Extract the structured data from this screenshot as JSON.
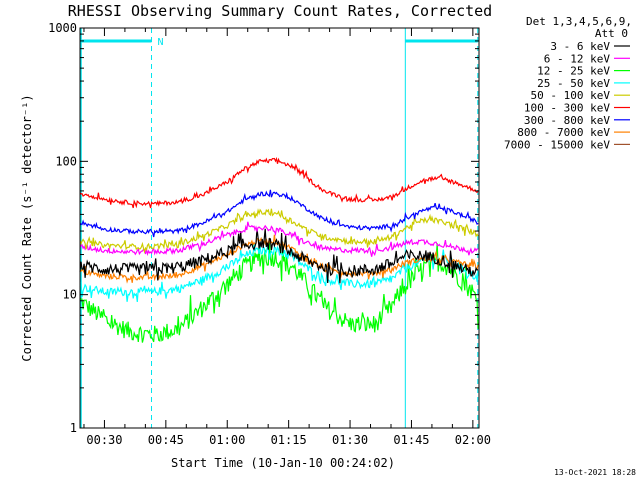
{
  "chart_data": {
    "type": "line",
    "title": "RHESSI Observing Summary Count Rates, Corrected",
    "ylabel": "Corrected Count Rate (s⁻¹ detector⁻¹)",
    "xlabel": "Start Time (10-Jan-10 00:24:02)",
    "footer": "13-Oct-2021 18:28",
    "ylim": [
      1,
      1000
    ],
    "yscale": "log",
    "y_ticks": [
      "1",
      "10",
      "100",
      "1000"
    ],
    "xlim_minutes": [
      24.03,
      121.5
    ],
    "x_ticks": [
      {
        "label": "00:30",
        "minute": 30
      },
      {
        "label": "00:45",
        "minute": 45
      },
      {
        "label": "01:00",
        "minute": 60
      },
      {
        "label": "01:15",
        "minute": 75
      },
      {
        "label": "01:30",
        "minute": 90
      },
      {
        "label": "01:45",
        "minute": 105
      },
      {
        "label": "02:00",
        "minute": 120
      }
    ],
    "grid": false,
    "legend_placement": "right",
    "legend_header": [
      "Det 1,3,4,5,6,9,",
      "Att 0"
    ],
    "night_marker_label": "N",
    "spacecraft_night": [
      {
        "start": 24.03,
        "end": 41.5
      },
      {
        "start": 103.5,
        "end": 121.2
      }
    ],
    "curve_x": [
      24,
      30,
      36,
      42,
      48,
      54,
      60,
      64,
      68,
      72,
      76,
      80,
      84,
      90,
      96,
      100,
      102,
      104,
      106,
      108,
      110,
      112,
      114,
      116,
      118,
      120,
      121.5
    ],
    "series": [
      {
        "name": "3 - 6 keV",
        "color": "#000000",
        "jitter": 0.045,
        "values": [
          16.5,
          15.5,
          15.5,
          15.5,
          16,
          18,
          21,
          23.5,
          24.5,
          23.5,
          20.5,
          17.5,
          16,
          15,
          15.5,
          17,
          18.5,
          19.5,
          19.5,
          19.5,
          19,
          18.5,
          17.5,
          16.5,
          15.5,
          15,
          14
        ]
      },
      {
        "name": "6 - 12 keV",
        "color": "#ff00ff",
        "jitter": 0.02,
        "values": [
          23,
          21.5,
          21,
          21,
          21.5,
          24,
          28,
          31,
          32,
          31,
          27.5,
          24,
          22,
          21.5,
          21.5,
          22.5,
          23.5,
          24.5,
          25,
          25,
          24.5,
          24,
          23,
          22.5,
          22,
          21.5,
          21
        ]
      },
      {
        "name": "12 - 25 keV",
        "color": "#00ff00",
        "jitter": 0.07,
        "values": [
          9,
          6.5,
          5.3,
          5,
          5.5,
          8,
          12,
          16,
          19,
          19,
          16,
          11.5,
          8,
          6,
          6,
          8,
          10,
          12,
          14,
          16,
          17.5,
          17.5,
          16,
          14,
          12,
          10.5,
          8
        ]
      },
      {
        "name": "25 - 50 keV",
        "color": "#00ffff",
        "jitter": 0.03,
        "values": [
          11.5,
          10.5,
          10.5,
          10.5,
          11,
          13,
          16,
          19.5,
          21.5,
          21.5,
          19,
          15.5,
          13,
          12,
          12,
          13,
          14.5,
          16,
          17,
          18,
          18.5,
          18.5,
          18,
          17,
          15.5,
          14,
          13
        ]
      },
      {
        "name": "50 - 100 keV",
        "color": "#cccc00",
        "jitter": 0.02,
        "values": [
          25,
          23.5,
          23,
          23,
          24,
          27.5,
          33,
          38.5,
          41.5,
          41,
          35.5,
          30,
          27,
          25,
          25,
          27,
          29.5,
          32,
          34.5,
          36,
          36.5,
          35.5,
          34,
          32.5,
          31,
          29.5,
          28
        ]
      },
      {
        "name": "100 - 300 keV",
        "color": "#ff0000",
        "jitter": 0.015,
        "values": [
          58,
          52,
          49,
          48,
          49.5,
          56,
          70,
          87,
          100,
          102,
          91,
          73,
          59,
          52,
          51,
          54,
          58,
          63,
          68,
          72,
          74,
          74,
          72,
          69,
          65,
          62,
          59
        ]
      },
      {
        "name": "300 - 800 keV",
        "color": "#0000ff",
        "jitter": 0.015,
        "values": [
          35,
          31,
          30,
          29.5,
          30,
          34.5,
          42,
          51,
          57,
          57.5,
          52,
          43,
          36,
          32,
          31.5,
          33,
          35,
          37.5,
          40.5,
          43,
          44.5,
          44.5,
          43,
          41,
          38.5,
          36.5,
          34
        ]
      },
      {
        "name": "800 - 7000 keV",
        "color": "#ff8000",
        "jitter": 0.02,
        "values": [
          15,
          13.8,
          13.5,
          13.5,
          14,
          16.5,
          20,
          23.5,
          25.5,
          25,
          22,
          18,
          15.5,
          14.5,
          14.5,
          15.5,
          16.5,
          17.5,
          18,
          18.5,
          18.5,
          18.5,
          18,
          17.5,
          17,
          16.5,
          16
        ]
      },
      {
        "name": "7000 - 15000 keV",
        "color": "#a0522d",
        "jitter": 0,
        "values": []
      }
    ]
  }
}
